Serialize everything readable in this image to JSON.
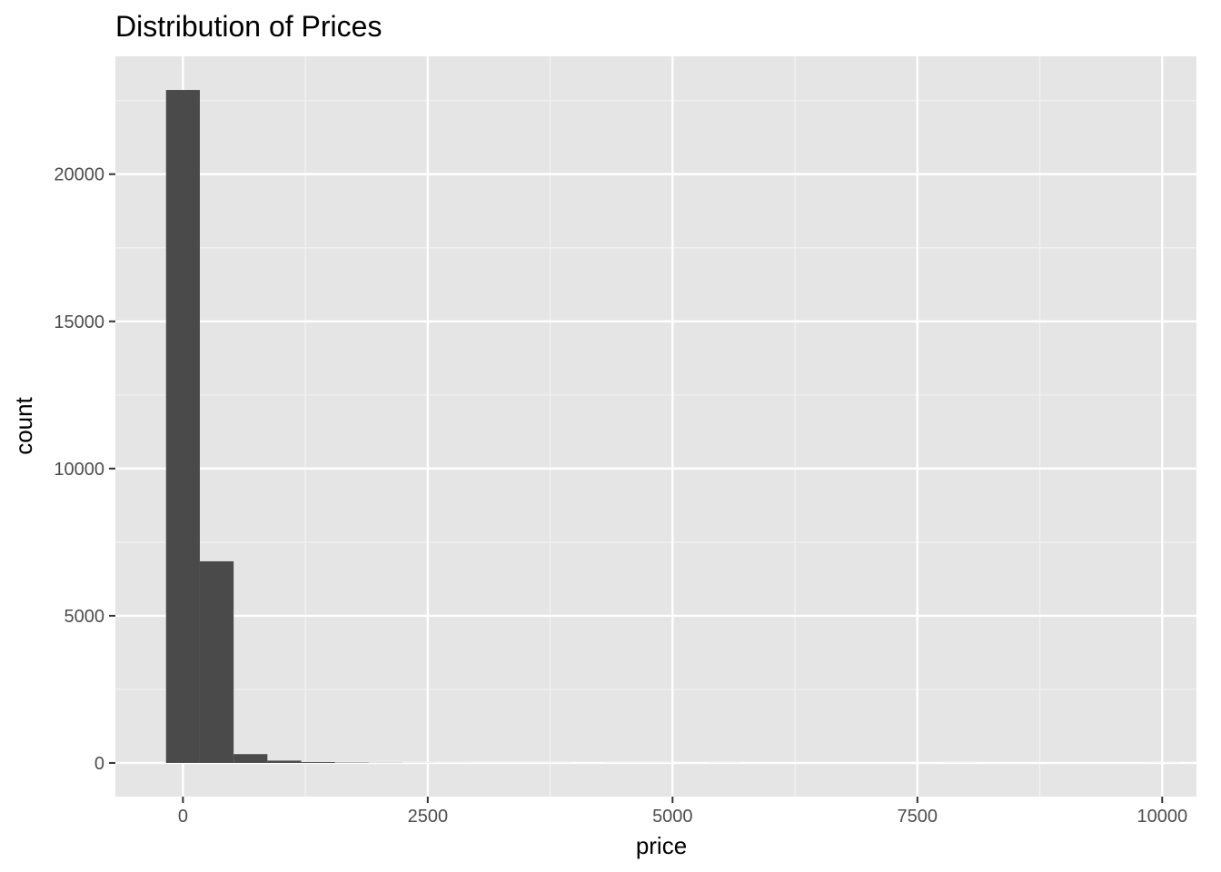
{
  "chart_data": {
    "type": "bar",
    "title": "Distribution of Prices",
    "xlabel": "price",
    "ylabel": "count",
    "bin_width": 345,
    "bins": [
      {
        "x_start": -172.5,
        "x_end": 172.5,
        "count": 22860
      },
      {
        "x_start": 172.5,
        "x_end": 517.5,
        "count": 6850
      },
      {
        "x_start": 517.5,
        "x_end": 862.5,
        "count": 300
      },
      {
        "x_start": 862.5,
        "x_end": 1207.5,
        "count": 80
      },
      {
        "x_start": 1207.5,
        "x_end": 1552.5,
        "count": 30
      },
      {
        "x_start": 1552.5,
        "x_end": 1897.5,
        "count": 12
      },
      {
        "x_start": 1897.5,
        "x_end": 2242.5,
        "count": 6
      },
      {
        "x_start": 2242.5,
        "x_end": 2587.5,
        "count": 3
      },
      {
        "x_start": 2587.5,
        "x_end": 2932.5,
        "count": 2
      },
      {
        "x_start": 2932.5,
        "x_end": 3277.5,
        "count": 1
      },
      {
        "x_start": 3277.5,
        "x_end": 3622.5,
        "count": 1
      },
      {
        "x_start": 3622.5,
        "x_end": 3967.5,
        "count": 1
      },
      {
        "x_start": 3967.5,
        "x_end": 4312.5,
        "count": 0
      },
      {
        "x_start": 4312.5,
        "x_end": 4657.5,
        "count": 1
      },
      {
        "x_start": 4657.5,
        "x_end": 5002.5,
        "count": 1
      },
      {
        "x_start": 5002.5,
        "x_end": 5347.5,
        "count": 0
      },
      {
        "x_start": 5347.5,
        "x_end": 5692.5,
        "count": 1
      },
      {
        "x_start": 5692.5,
        "x_end": 6037.5,
        "count": 0
      },
      {
        "x_start": 6037.5,
        "x_end": 6382.5,
        "count": 0
      },
      {
        "x_start": 6382.5,
        "x_end": 6727.5,
        "count": 0
      },
      {
        "x_start": 6727.5,
        "x_end": 7072.5,
        "count": 0
      },
      {
        "x_start": 7072.5,
        "x_end": 7417.5,
        "count": 0
      },
      {
        "x_start": 7417.5,
        "x_end": 7762.5,
        "count": 0
      },
      {
        "x_start": 7762.5,
        "x_end": 8107.5,
        "count": 1
      },
      {
        "x_start": 8107.5,
        "x_end": 8452.5,
        "count": 0
      },
      {
        "x_start": 8452.5,
        "x_end": 8797.5,
        "count": 0
      },
      {
        "x_start": 8797.5,
        "x_end": 9142.5,
        "count": 0
      },
      {
        "x_start": 9142.5,
        "x_end": 9487.5,
        "count": 0
      },
      {
        "x_start": 9487.5,
        "x_end": 9832.5,
        "count": 0
      },
      {
        "x_start": 9832.5,
        "x_end": 10177.5,
        "count": 1
      }
    ],
    "x_ticks": [
      0,
      2500,
      5000,
      7500,
      10000
    ],
    "x_tick_labels": [
      "0",
      "2500",
      "5000",
      "7500",
      "10000"
    ],
    "y_ticks": [
      0,
      5000,
      10000,
      15000,
      20000
    ],
    "y_tick_labels": [
      "0",
      "5000",
      "10000",
      "15000",
      "20000"
    ],
    "xlim": [
      -690,
      10350
    ],
    "ylim": [
      -1143,
      24003
    ],
    "grid": true,
    "legend": "none",
    "colors": {
      "panel_background": "#e5e5e5",
      "grid_major": "#ffffff",
      "grid_minor": "#f2f2f2",
      "bar_fill": "#4a4a4a",
      "tick_text": "#4d4d4d",
      "tick_mark": "#333333"
    }
  }
}
